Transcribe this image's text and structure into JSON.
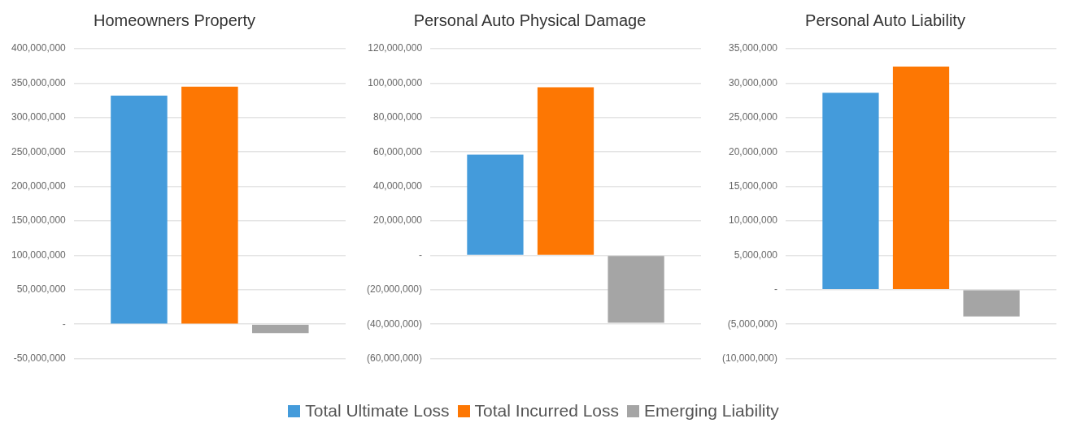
{
  "chart_data": [
    {
      "type": "bar",
      "title": "Homeowners Property",
      "categories": [
        null
      ],
      "legend": "bottom",
      "grid": "y",
      "series": [
        {
          "name": "Total Ultimate Loss",
          "color": "#449bdb",
          "values": [
            332000000
          ]
        },
        {
          "name": "Total Incurred Loss",
          "color": "#fd7703",
          "values": [
            345000000
          ]
        },
        {
          "name": "Emerging Liability",
          "color": "#a5a5a5",
          "values": [
            -13000000
          ]
        }
      ],
      "ylim": [
        -50000000,
        400000000
      ],
      "yticks": [
        {
          "value": -50000000,
          "label": "-50,000,000"
        },
        {
          "value": 0,
          "label": "-"
        },
        {
          "value": 50000000,
          "label": "50,000,000"
        },
        {
          "value": 100000000,
          "label": "100,000,000"
        },
        {
          "value": 150000000,
          "label": "150,000,000"
        },
        {
          "value": 200000000,
          "label": "200,000,000"
        },
        {
          "value": 250000000,
          "label": "250,000,000"
        },
        {
          "value": 300000000,
          "label": "300,000,000"
        },
        {
          "value": 350000000,
          "label": "350,000,000"
        },
        {
          "value": 400000000,
          "label": "400,000,000"
        }
      ]
    },
    {
      "type": "bar",
      "title": "Personal Auto Physical Damage",
      "categories": [
        null
      ],
      "grid": "y",
      "series": [
        {
          "color": "#449bdb",
          "values": [
            58400000
          ]
        },
        {
          "color": "#fd7703",
          "values": [
            97600000
          ]
        },
        {
          "color": "#a5a5a5",
          "values": [
            -39200000
          ]
        }
      ],
      "ylim": [
        -60000000,
        120000000
      ],
      "yticks": [
        {
          "value": -60000000,
          "label": "(60,000,000)"
        },
        {
          "value": -40000000,
          "label": "(40,000,000)"
        },
        {
          "value": -20000000,
          "label": "(20,000,000)"
        },
        {
          "value": 0,
          "label": "-"
        },
        {
          "value": 20000000,
          "label": "20,000,000"
        },
        {
          "value": 40000000,
          "label": "40,000,000"
        },
        {
          "value": 60000000,
          "label": "60,000,000"
        },
        {
          "value": 80000000,
          "label": "80,000,000"
        },
        {
          "value": 100000000,
          "label": "100,000,000"
        },
        {
          "value": 120000000,
          "label": "120,000,000"
        }
      ]
    },
    {
      "type": "bar",
      "title": "Personal Auto Liability",
      "categories": [
        null
      ],
      "grid": "y",
      "series": [
        {
          "color": "#449bdb",
          "values": [
            28600000
          ]
        },
        {
          "color": "#fd7703",
          "values": [
            32400000
          ]
        },
        {
          "color": "#a5a5a5",
          "values": [
            -3900000
          ]
        }
      ],
      "ylim": [
        -10000000,
        35000000
      ],
      "yticks": [
        {
          "value": -10000000,
          "label": "(10,000,000)"
        },
        {
          "value": -5000000,
          "label": "(5,000,000)"
        },
        {
          "value": 0,
          "label": "-"
        },
        {
          "value": 5000000,
          "label": "5,000,000"
        },
        {
          "value": 10000000,
          "label": "10,000,000"
        },
        {
          "value": 15000000,
          "label": "15,000,000"
        },
        {
          "value": 20000000,
          "label": "20,000,000"
        },
        {
          "value": 25000000,
          "label": "25,000,000"
        },
        {
          "value": 30000000,
          "label": "30,000,000"
        },
        {
          "value": 35000000,
          "label": "35,000,000"
        }
      ]
    }
  ]
}
